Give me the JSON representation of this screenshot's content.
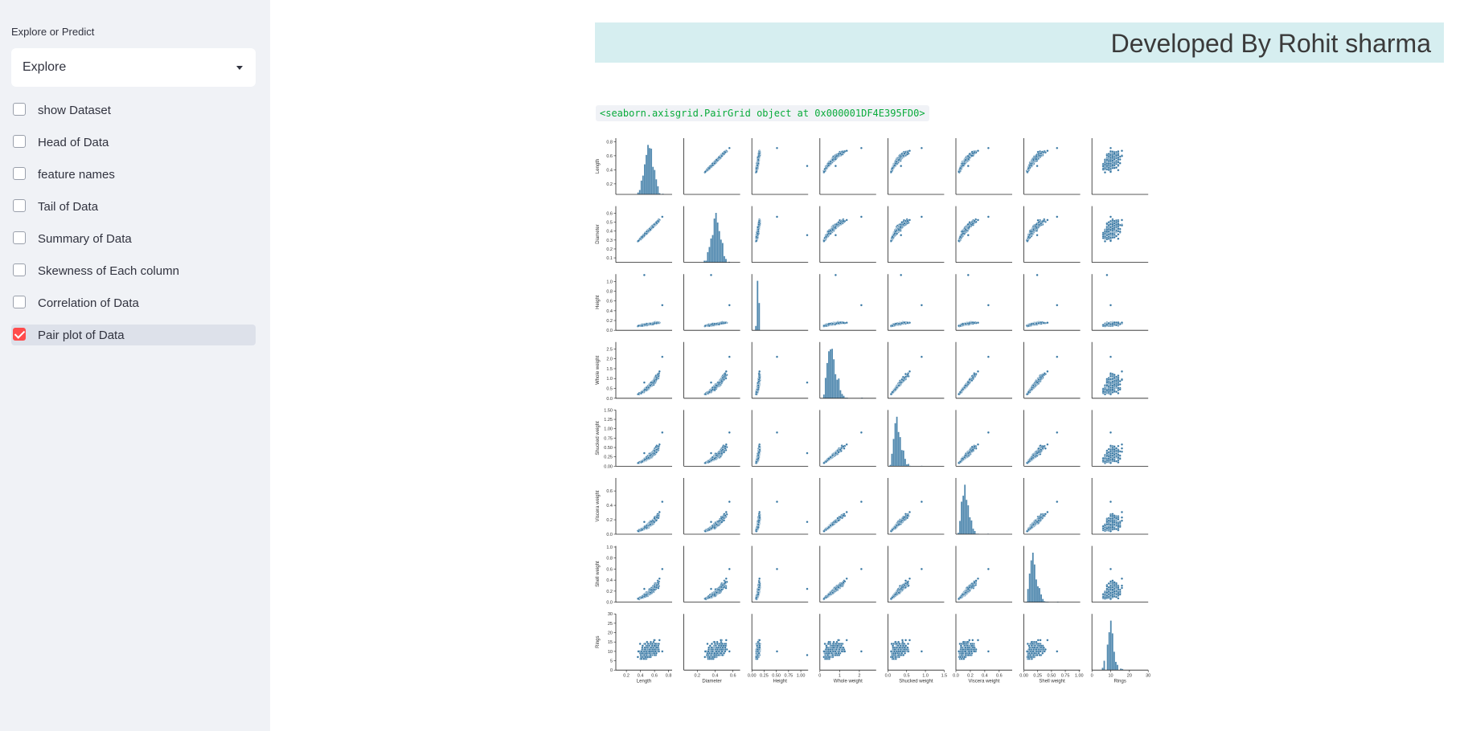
{
  "sidebar": {
    "select_label": "Explore or Predict",
    "select_value": "Explore",
    "checkboxes": [
      {
        "label": "show Dataset",
        "checked": false
      },
      {
        "label": "Head of Data",
        "checked": false
      },
      {
        "label": "feature names",
        "checked": false
      },
      {
        "label": "Tail of Data",
        "checked": false
      },
      {
        "label": "Summary of Data",
        "checked": false
      },
      {
        "label": "Skewness of Each column",
        "checked": false
      },
      {
        "label": "Correlation of Data",
        "checked": false
      },
      {
        "label": "Pair plot of Data",
        "checked": true
      }
    ]
  },
  "main": {
    "banner": "Developed By Rohit sharma",
    "code_output": "<seaborn.axisgrid.PairGrid object at 0x000001DF4E395FD0>"
  },
  "colors": {
    "accent": "#ff4b4b",
    "banner_bg": "#d6eef0",
    "sidebar_bg": "#f0f2f6",
    "points": "#3274a1"
  },
  "chart_data": {
    "type": "scatter",
    "variables": [
      "Length",
      "Diameter",
      "Height",
      "Whole weight",
      "Shucked weight",
      "Viscera weight",
      "Shell weight",
      "Rings"
    ],
    "ylabels": [
      "Length",
      "Diameter",
      "Height",
      "Whole weight",
      "Shucked weight",
      "Viscera weight",
      "Shell weight",
      "Rings"
    ],
    "ranges": [
      [
        0.05,
        0.85
      ],
      [
        0.05,
        0.68
      ],
      [
        0.0,
        1.15
      ],
      [
        0.0,
        2.85
      ],
      [
        0.0,
        1.5
      ],
      [
        0.0,
        0.78
      ],
      [
        0.0,
        1.02
      ],
      [
        0,
        30
      ]
    ],
    "ticks": [
      [
        "0.2",
        "0.4",
        "0.6",
        "0.8"
      ],
      [
        "0.2",
        "0.4",
        "0.6"
      ],
      [
        "0.00",
        "0.25",
        "0.50",
        "0.75",
        "1.00"
      ],
      [
        "0",
        "1",
        "2"
      ],
      [
        "0.0",
        "0.5",
        "1.0",
        "1.5"
      ],
      [
        "0.0",
        "0.2",
        "0.4",
        "0.6"
      ],
      [
        "0.00",
        "0.25",
        "0.50",
        "0.75",
        "1.00"
      ],
      [
        "0",
        "10",
        "20",
        "30"
      ]
    ],
    "tick_values": [
      [
        0.2,
        0.4,
        0.6,
        0.8
      ],
      [
        0.2,
        0.4,
        0.6
      ],
      [
        0.0,
        0.25,
        0.5,
        0.75,
        1.0
      ],
      [
        0,
        1,
        2
      ],
      [
        0.0,
        0.5,
        1.0,
        1.5
      ],
      [
        0.0,
        0.2,
        0.4,
        0.6
      ],
      [
        0.0,
        0.25,
        0.5,
        0.75,
        1.0
      ],
      [
        0,
        10,
        20,
        30
      ]
    ],
    "yticks": [
      [
        "0.2",
        "0.4",
        "0.6",
        "0.8"
      ],
      [
        "0.1",
        "0.2",
        "0.3",
        "0.4",
        "0.5",
        "0.6"
      ],
      [
        "0.0",
        "0.2",
        "0.4",
        "0.6",
        "0.8",
        "1.0"
      ],
      [
        "0.0",
        "0.5",
        "1.0",
        "1.5",
        "2.0",
        "2.5"
      ],
      [
        "0.00",
        "0.25",
        "0.50",
        "0.75",
        "1.00",
        "1.25",
        "1.50"
      ],
      [
        "0.0",
        "0.2",
        "0.4",
        "0.6"
      ],
      [
        "0.0",
        "0.2",
        "0.4",
        "0.6",
        "0.8",
        "1.0"
      ],
      [
        "0",
        "5",
        "10",
        "15",
        "20",
        "25",
        "30"
      ]
    ],
    "ytick_values": [
      [
        0.2,
        0.4,
        0.6,
        0.8
      ],
      [
        0.1,
        0.2,
        0.3,
        0.4,
        0.5,
        0.6
      ],
      [
        0.0,
        0.2,
        0.4,
        0.6,
        0.8,
        1.0
      ],
      [
        0.0,
        0.5,
        1.0,
        1.5,
        2.0,
        2.5
      ],
      [
        0.0,
        0.25,
        0.5,
        0.75,
        1.0,
        1.25,
        1.5
      ],
      [
        0.0,
        0.2,
        0.4,
        0.6
      ],
      [
        0.0,
        0.2,
        0.4,
        0.6,
        0.8,
        1.0
      ],
      [
        0,
        5,
        10,
        15,
        20,
        25,
        30
      ]
    ],
    "diagonal": "histogram",
    "grid": false,
    "legend": "none"
  }
}
